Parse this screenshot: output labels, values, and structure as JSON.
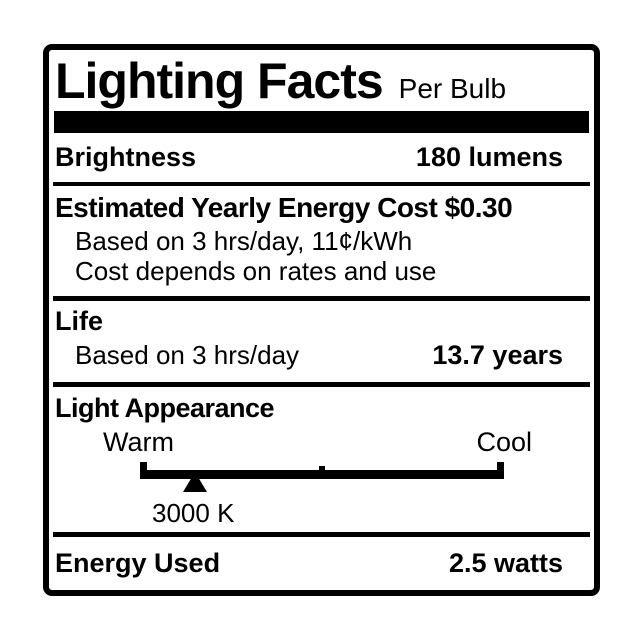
{
  "colors": {
    "ink": "#000000",
    "paper": "#ffffff"
  },
  "label": {
    "title": "Lighting Facts",
    "subtitle": "Per Bulb",
    "brightness": {
      "name": "Brightness",
      "value": "180 lumens"
    },
    "energy_cost": {
      "heading": "Estimated Yearly Energy Cost $0.30",
      "basis_line": "Based on 3 hrs/day, 11¢/kWh",
      "note_line": "Cost depends on rates and use"
    },
    "life": {
      "heading": "Life",
      "basis": "Based on 3 hrs/day",
      "value": "13.7 years"
    },
    "light_appearance": {
      "heading": "Light Appearance",
      "warm_label": "Warm",
      "cool_label": "Cool",
      "marker_value": "3000 K",
      "marker_position_pct": 15
    },
    "energy_used": {
      "name": "Energy Used",
      "value": "2.5 watts"
    }
  }
}
